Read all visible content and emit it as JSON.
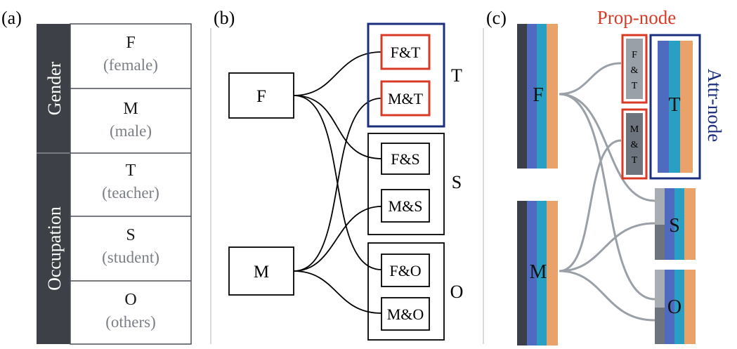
{
  "panel_labels": {
    "a": "(a)",
    "b": "(b)",
    "c": "(c)"
  },
  "panel_a": {
    "categories": [
      {
        "name": "Gender",
        "values": [
          {
            "code": "F",
            "desc": "(female)"
          },
          {
            "code": "M",
            "desc": "(male)"
          }
        ]
      },
      {
        "name": "Occupation",
        "values": [
          {
            "code": "T",
            "desc": "(teacher)"
          },
          {
            "code": "S",
            "desc": "(student)"
          },
          {
            "code": "O",
            "desc": "(others)"
          }
        ]
      }
    ]
  },
  "panel_b": {
    "left_nodes": [
      "F",
      "M"
    ],
    "groups": [
      {
        "label": "T",
        "nodes": [
          "F&T",
          "M&T"
        ],
        "highlighted": true
      },
      {
        "label": "S",
        "nodes": [
          "F&S",
          "M&S"
        ],
        "highlighted": false
      },
      {
        "label": "O",
        "nodes": [
          "F&O",
          "M&O"
        ],
        "highlighted": false
      }
    ]
  },
  "panel_c": {
    "prop_node_label": "Prop-node",
    "attr_node_label": "Attr-node",
    "left_nodes": [
      "F",
      "M"
    ],
    "prop_nodes": [
      [
        "F",
        "&",
        "T"
      ],
      [
        "M",
        "&",
        "T"
      ]
    ],
    "attr_nodes": [
      "T",
      "S",
      "O"
    ]
  },
  "colors": {
    "dark_gray": "#3d4147",
    "red": "#d93a26",
    "navy": "#1b2f7e",
    "bar_dark": "#3a3f4a",
    "bar_blue": "#4f6bbf",
    "bar_teal": "#2a9fc4",
    "bar_orange": "#e8a26a",
    "link_gray": "#9aa0a8"
  }
}
